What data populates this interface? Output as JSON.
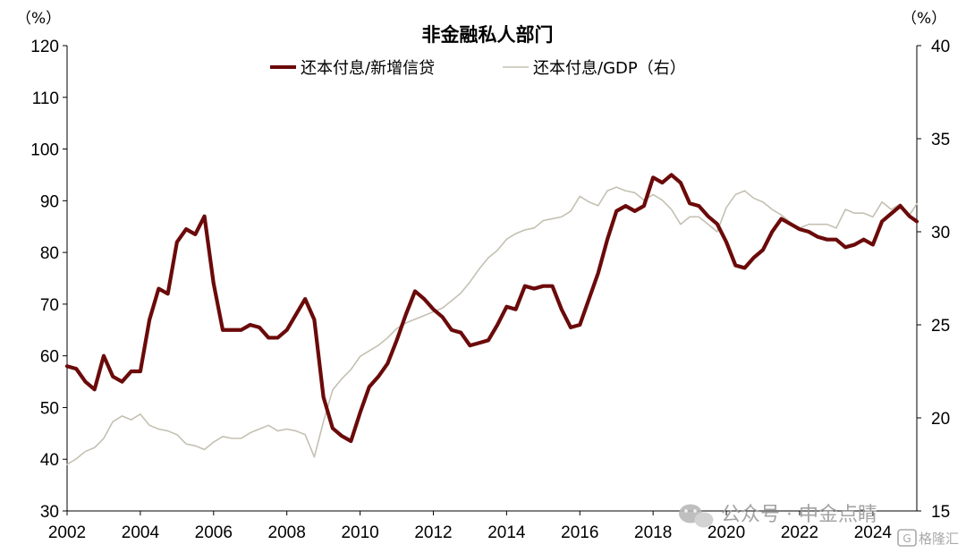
{
  "chart_data": {
    "type": "line",
    "title": "非金融私人部门",
    "left_unit": "（%）",
    "right_unit": "（%）",
    "left_axis": {
      "min": 30,
      "max": 120,
      "ticks": [
        30,
        40,
        50,
        60,
        70,
        80,
        90,
        100,
        110,
        120
      ]
    },
    "right_axis": {
      "min": 15,
      "max": 40,
      "ticks": [
        15,
        20,
        25,
        30,
        35,
        40
      ]
    },
    "x_axis": {
      "min": 2002,
      "max": 2025.2,
      "ticks": [
        2002,
        2004,
        2006,
        2008,
        2010,
        2012,
        2014,
        2016,
        2018,
        2020,
        2022,
        2024
      ]
    },
    "legend_position": "top-center",
    "grid": false,
    "series": [
      {
        "name": "还本付息/新增信贷",
        "axis": "left",
        "color": "#6b0a0a",
        "points": [
          [
            2002.0,
            58
          ],
          [
            2002.25,
            57.5
          ],
          [
            2002.5,
            55
          ],
          [
            2002.75,
            53.5
          ],
          [
            2003.0,
            60
          ],
          [
            2003.25,
            56
          ],
          [
            2003.5,
            55
          ],
          [
            2003.75,
            57
          ],
          [
            2004.0,
            57
          ],
          [
            2004.25,
            67
          ],
          [
            2004.5,
            73
          ],
          [
            2004.75,
            72
          ],
          [
            2005.0,
            82
          ],
          [
            2005.25,
            84.5
          ],
          [
            2005.5,
            83.5
          ],
          [
            2005.75,
            87
          ],
          [
            2006.0,
            74
          ],
          [
            2006.25,
            65
          ],
          [
            2006.5,
            65
          ],
          [
            2006.75,
            65
          ],
          [
            2007.0,
            66
          ],
          [
            2007.25,
            65.5
          ],
          [
            2007.5,
            63.5
          ],
          [
            2007.75,
            63.5
          ],
          [
            2008.0,
            65
          ],
          [
            2008.25,
            68
          ],
          [
            2008.5,
            71
          ],
          [
            2008.75,
            67
          ],
          [
            2009.0,
            52
          ],
          [
            2009.25,
            46
          ],
          [
            2009.5,
            44.5
          ],
          [
            2009.75,
            43.5
          ],
          [
            2010.0,
            49
          ],
          [
            2010.25,
            54
          ],
          [
            2010.5,
            56
          ],
          [
            2010.75,
            58.5
          ],
          [
            2011.0,
            63
          ],
          [
            2011.25,
            68
          ],
          [
            2011.5,
            72.5
          ],
          [
            2011.75,
            71
          ],
          [
            2012.0,
            69
          ],
          [
            2012.25,
            67.5
          ],
          [
            2012.5,
            65
          ],
          [
            2012.75,
            64.5
          ],
          [
            2013.0,
            62
          ],
          [
            2013.25,
            62.5
          ],
          [
            2013.5,
            63
          ],
          [
            2013.75,
            66
          ],
          [
            2014.0,
            69.5
          ],
          [
            2014.25,
            69
          ],
          [
            2014.5,
            73.5
          ],
          [
            2014.75,
            73
          ],
          [
            2015.0,
            73.5
          ],
          [
            2015.25,
            73.5
          ],
          [
            2015.5,
            69
          ],
          [
            2015.75,
            65.5
          ],
          [
            2016.0,
            66
          ],
          [
            2016.25,
            71
          ],
          [
            2016.5,
            76
          ],
          [
            2016.75,
            82.5
          ],
          [
            2017.0,
            88
          ],
          [
            2017.25,
            89
          ],
          [
            2017.5,
            88
          ],
          [
            2017.75,
            89
          ],
          [
            2018.0,
            94.5
          ],
          [
            2018.25,
            93.5
          ],
          [
            2018.5,
            95
          ],
          [
            2018.75,
            93.5
          ],
          [
            2019.0,
            89.5
          ],
          [
            2019.25,
            89
          ],
          [
            2019.5,
            87
          ],
          [
            2019.75,
            85.5
          ],
          [
            2020.0,
            82
          ],
          [
            2020.25,
            77.5
          ],
          [
            2020.5,
            77
          ],
          [
            2020.75,
            79
          ],
          [
            2021.0,
            80.5
          ],
          [
            2021.25,
            84
          ],
          [
            2021.5,
            86.5
          ],
          [
            2021.75,
            85.5
          ],
          [
            2022.0,
            84.5
          ],
          [
            2022.25,
            84
          ],
          [
            2022.5,
            83
          ],
          [
            2022.75,
            82.5
          ],
          [
            2023.0,
            82.5
          ],
          [
            2023.25,
            81
          ],
          [
            2023.5,
            81.5
          ],
          [
            2023.75,
            82.5
          ],
          [
            2024.0,
            81.5
          ],
          [
            2024.25,
            86
          ],
          [
            2024.5,
            87.5
          ],
          [
            2024.75,
            89
          ],
          [
            2025.0,
            87
          ],
          [
            2025.2,
            86
          ]
        ]
      },
      {
        "name": "还本付息/GDP（右）",
        "axis": "right",
        "color": "#c4c0b2",
        "points": [
          [
            2002.0,
            17.5
          ],
          [
            2002.25,
            17.8
          ],
          [
            2002.5,
            18.2
          ],
          [
            2002.75,
            18.4
          ],
          [
            2003.0,
            18.9
          ],
          [
            2003.25,
            19.8
          ],
          [
            2003.5,
            20.1
          ],
          [
            2003.75,
            19.9
          ],
          [
            2004.0,
            20.2
          ],
          [
            2004.25,
            19.6
          ],
          [
            2004.5,
            19.4
          ],
          [
            2004.75,
            19.3
          ],
          [
            2005.0,
            19.1
          ],
          [
            2005.25,
            18.6
          ],
          [
            2005.5,
            18.5
          ],
          [
            2005.75,
            18.3
          ],
          [
            2006.0,
            18.7
          ],
          [
            2006.25,
            19.0
          ],
          [
            2006.5,
            18.9
          ],
          [
            2006.75,
            18.9
          ],
          [
            2007.0,
            19.2
          ],
          [
            2007.25,
            19.4
          ],
          [
            2007.5,
            19.6
          ],
          [
            2007.75,
            19.3
          ],
          [
            2008.0,
            19.4
          ],
          [
            2008.25,
            19.3
          ],
          [
            2008.5,
            19.1
          ],
          [
            2008.75,
            17.9
          ],
          [
            2009.0,
            19.8
          ],
          [
            2009.25,
            21.5
          ],
          [
            2009.5,
            22.1
          ],
          [
            2009.75,
            22.6
          ],
          [
            2010.0,
            23.3
          ],
          [
            2010.25,
            23.6
          ],
          [
            2010.5,
            23.9
          ],
          [
            2010.75,
            24.3
          ],
          [
            2011.0,
            24.8
          ],
          [
            2011.25,
            25.1
          ],
          [
            2011.5,
            25.3
          ],
          [
            2011.75,
            25.5
          ],
          [
            2012.0,
            25.7
          ],
          [
            2012.25,
            25.9
          ],
          [
            2012.5,
            26.3
          ],
          [
            2012.75,
            26.7
          ],
          [
            2013.0,
            27.3
          ],
          [
            2013.25,
            28.0
          ],
          [
            2013.5,
            28.6
          ],
          [
            2013.75,
            29.0
          ],
          [
            2014.0,
            29.6
          ],
          [
            2014.25,
            29.9
          ],
          [
            2014.5,
            30.1
          ],
          [
            2014.75,
            30.2
          ],
          [
            2015.0,
            30.6
          ],
          [
            2015.25,
            30.7
          ],
          [
            2015.5,
            30.8
          ],
          [
            2015.75,
            31.1
          ],
          [
            2016.0,
            31.9
          ],
          [
            2016.25,
            31.6
          ],
          [
            2016.5,
            31.4
          ],
          [
            2016.75,
            32.2
          ],
          [
            2017.0,
            32.4
          ],
          [
            2017.25,
            32.2
          ],
          [
            2017.5,
            32.1
          ],
          [
            2017.75,
            31.7
          ],
          [
            2018.0,
            32.0
          ],
          [
            2018.25,
            31.7
          ],
          [
            2018.5,
            31.2
          ],
          [
            2018.75,
            30.4
          ],
          [
            2019.0,
            30.8
          ],
          [
            2019.25,
            30.8
          ],
          [
            2019.5,
            30.4
          ],
          [
            2019.75,
            30.0
          ],
          [
            2020.0,
            31.3
          ],
          [
            2020.25,
            32.0
          ],
          [
            2020.5,
            32.2
          ],
          [
            2020.75,
            31.8
          ],
          [
            2021.0,
            31.6
          ],
          [
            2021.25,
            31.2
          ],
          [
            2021.5,
            30.9
          ],
          [
            2021.75,
            30.5
          ],
          [
            2022.0,
            30.2
          ],
          [
            2022.25,
            30.4
          ],
          [
            2022.5,
            30.4
          ],
          [
            2022.75,
            30.4
          ],
          [
            2023.0,
            30.2
          ],
          [
            2023.25,
            31.2
          ],
          [
            2023.5,
            31.0
          ],
          [
            2023.75,
            31.0
          ],
          [
            2024.0,
            30.8
          ],
          [
            2024.25,
            31.6
          ],
          [
            2024.5,
            31.2
          ],
          [
            2024.75,
            31.5
          ],
          [
            2025.0,
            30.9
          ],
          [
            2025.2,
            31.5
          ]
        ]
      }
    ]
  },
  "watermark": {
    "text1": "公众号 · 中金点睛",
    "text2": "格隆汇"
  }
}
